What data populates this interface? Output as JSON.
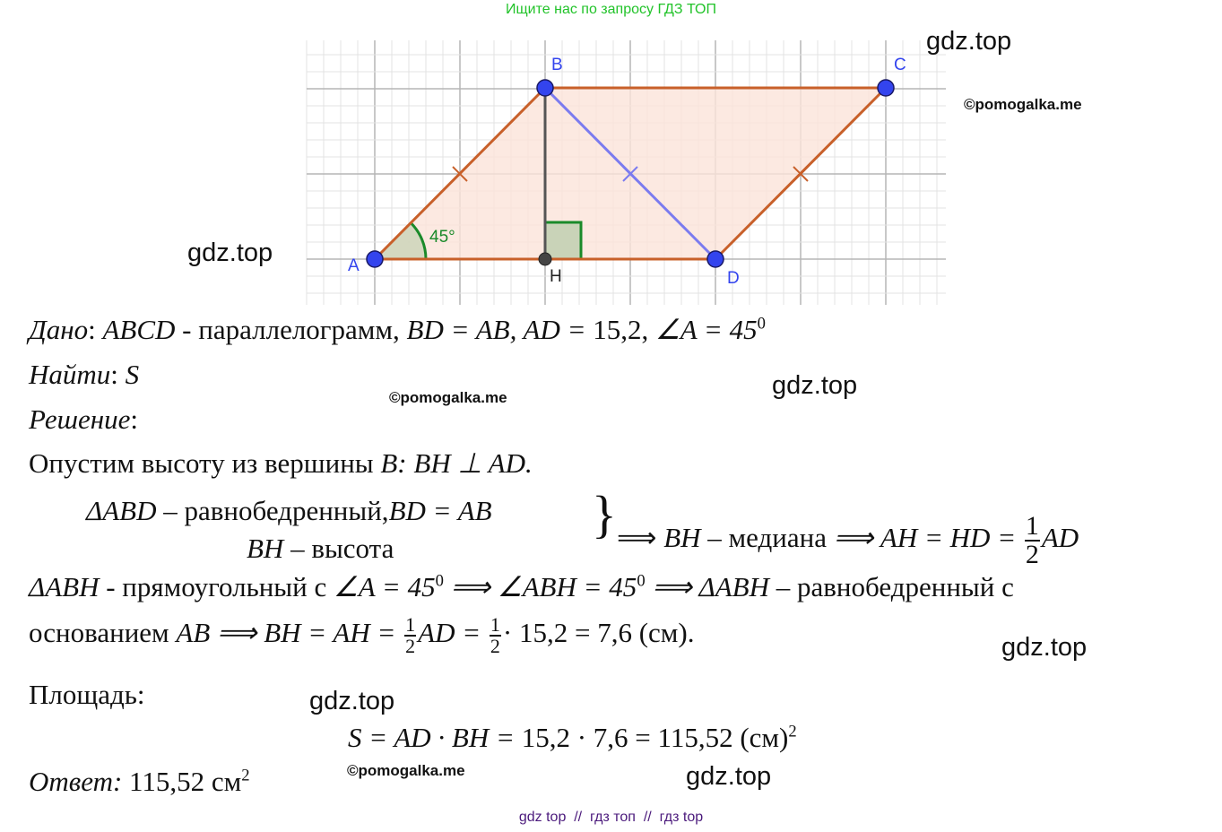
{
  "header": {
    "note": "Ищите нас по запросу ГДЗ ТОП"
  },
  "watermarks": {
    "gdz": "gdz.top",
    "pomogalka": "©pomogalka.me"
  },
  "diagram": {
    "points": {
      "A": "A",
      "B": "B",
      "C": "C",
      "D": "D",
      "H": "H"
    },
    "angle_label": "45°",
    "colors": {
      "sides": "#c8602a",
      "fill": "#fbe3da",
      "diagonal": "#7b7bef",
      "height": "#555555",
      "angle": "#1a8a2a",
      "points": "#3344ee",
      "grid": "#cfcfcf"
    }
  },
  "solution": {
    "given": {
      "label": "Дано",
      "text1": ": ",
      "math1": "ABCD",
      "text2": " - параллелограмм, ",
      "math2": "BD = AB, AD = ",
      "num": "15,2,  ",
      "math3": "∠A = 45",
      "sup": "0"
    },
    "find": {
      "label": "Найти",
      "text": ": ",
      "math": "S"
    },
    "solution_label": {
      "label": "Решение",
      "text": ":"
    },
    "step1": {
      "text": "Опустим высоту из вершины ",
      "math": "B: BH ⊥ AD."
    },
    "system": {
      "row1a": "ΔABD",
      "row1b": " –  равнобедренный,",
      "row1c": "BD = AB",
      "row2a": "BH",
      "row2b": " – высота",
      "brace": "}",
      "arrow": "⟹ ",
      "m1": "BH",
      "t1": " – медиана ",
      "m2": "⟹ AH = HD = ",
      "num": "1",
      "den": "2",
      "m3": "AD"
    },
    "step2": {
      "m1": "ΔABH",
      "t1": " - прямоугольный с ",
      "m2": "∠A = 45",
      "s1": "0",
      "m3": " ⟹ ∠ABH = 45",
      "s2": "0",
      "m4": " ⟹ ΔABH",
      "t2": " – равнобедренный с"
    },
    "step3": {
      "t1": "основанием ",
      "m1": "AB ⟹ BH = AH = ",
      "num1": "1",
      "den1": "2",
      "m2": "AD = ",
      "num2": "1",
      "den2": "2",
      "t2": "· 15,2 = 7,6 (см)."
    },
    "area": {
      "label": "Площадь:"
    },
    "formula": {
      "m": "S = AD · BH = ",
      "t": "15,2 · 7,6 = 115,52 (см)",
      "sup": "2"
    },
    "answer": {
      "label": "Ответ:",
      "value": " 115,52 см",
      "sup": "2"
    }
  },
  "footer": {
    "links": [
      "gdz top",
      "гдз топ",
      "гдз top"
    ],
    "sep": "//"
  }
}
